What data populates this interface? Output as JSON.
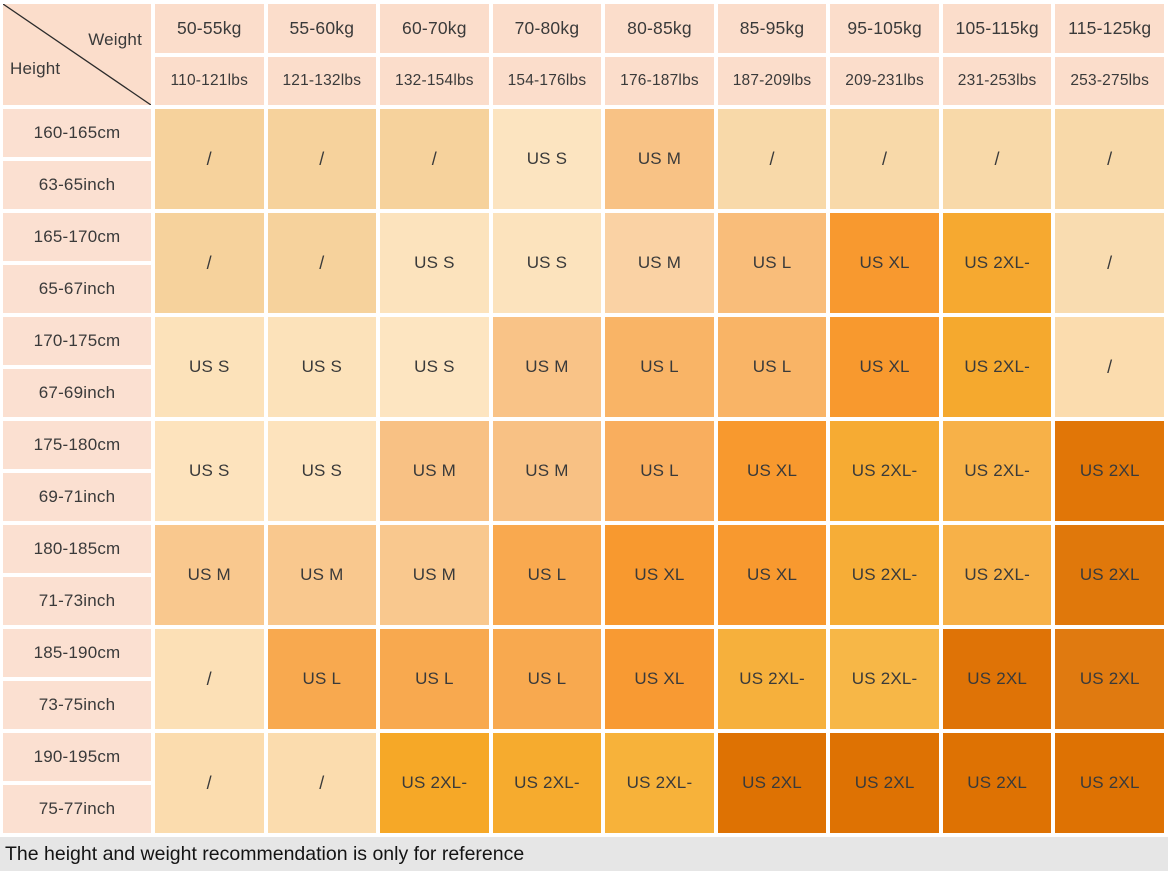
{
  "corner": {
    "weight_label": "Weight",
    "height_label": "Height"
  },
  "weight_headers_kg": [
    "50-55kg",
    "55-60kg",
    "60-70kg",
    "70-80kg",
    "80-85kg",
    "85-95kg",
    "95-105kg",
    "105-115kg",
    "115-125kg"
  ],
  "weight_headers_lbs": [
    "110-121lbs",
    "121-132lbs",
    "132-154lbs",
    "154-176lbs",
    "176-187lbs",
    "187-209lbs",
    "209-231lbs",
    "231-253lbs",
    "253-275lbs"
  ],
  "colors": {
    "header_bg": "#fbddcb",
    "height_col_bg": "#fbe0d1",
    "footer_bg": "#e6e6e6",
    "grid_gap": "#ffffff",
    "text": "#3a3a3a"
  },
  "rows": [
    {
      "cm": "160-165cm",
      "inch": "63-65inch",
      "cells": [
        {
          "label": "/",
          "color": "#f6d29c"
        },
        {
          "label": "/",
          "color": "#f6d29c"
        },
        {
          "label": "/",
          "color": "#f6d29c"
        },
        {
          "label": "US S",
          "color": "#fce4c0"
        },
        {
          "label": "US M",
          "color": "#f8c285"
        },
        {
          "label": "/",
          "color": "#f8d9a9"
        },
        {
          "label": "/",
          "color": "#f8d9a9"
        },
        {
          "label": "/",
          "color": "#f8d9a9"
        },
        {
          "label": "/",
          "color": "#f8d9a9"
        }
      ]
    },
    {
      "cm": "165-170cm",
      "inch": "65-67inch",
      "cells": [
        {
          "label": "/",
          "color": "#f6d29c"
        },
        {
          "label": "/",
          "color": "#f6d29c"
        },
        {
          "label": "US S",
          "color": "#fce3bd"
        },
        {
          "label": "US S",
          "color": "#fce3bd"
        },
        {
          "label": "US M",
          "color": "#fad2a4"
        },
        {
          "label": "US L",
          "color": "#f9bd7a"
        },
        {
          "label": "US XL",
          "color": "#f8992f"
        },
        {
          "label": "US 2XL-",
          "color": "#f6a930"
        },
        {
          "label": "/",
          "color": "#f9dcb0"
        }
      ]
    },
    {
      "cm": "170-175cm",
      "inch": "67-69inch",
      "cells": [
        {
          "label": "US S",
          "color": "#fce2ba"
        },
        {
          "label": "US S",
          "color": "#fce2ba"
        },
        {
          "label": "US S",
          "color": "#fde5c1"
        },
        {
          "label": "US M",
          "color": "#f9c387"
        },
        {
          "label": "US L",
          "color": "#f9b466"
        },
        {
          "label": "US L",
          "color": "#f9b466"
        },
        {
          "label": "US XL",
          "color": "#f8992e"
        },
        {
          "label": "US 2XL-",
          "color": "#f5a92e"
        },
        {
          "label": "/",
          "color": "#fbdcae"
        }
      ]
    },
    {
      "cm": "175-180cm",
      "inch": "69-71inch",
      "cells": [
        {
          "label": "US S",
          "color": "#fde3bd"
        },
        {
          "label": "US S",
          "color": "#fde3bd"
        },
        {
          "label": "US M",
          "color": "#f8c184"
        },
        {
          "label": "US M",
          "color": "#f8c184"
        },
        {
          "label": "US L",
          "color": "#f9ae5e"
        },
        {
          "label": "US XL",
          "color": "#f8992e"
        },
        {
          "label": "US 2XL-",
          "color": "#f6ab33"
        },
        {
          "label": "US 2XL-",
          "color": "#f7b148"
        },
        {
          "label": "US 2XL",
          "color": "#e17607"
        }
      ]
    },
    {
      "cm": "180-185cm",
      "inch": "71-73inch",
      "cells": [
        {
          "label": "US M",
          "color": "#f9c88e"
        },
        {
          "label": "US M",
          "color": "#f9c88e"
        },
        {
          "label": "US M",
          "color": "#f9c88e"
        },
        {
          "label": "US L",
          "color": "#f9a94f"
        },
        {
          "label": "US XL",
          "color": "#f8992f"
        },
        {
          "label": "US XL",
          "color": "#f8992f"
        },
        {
          "label": "US 2XL-",
          "color": "#f6ad37"
        },
        {
          "label": "US 2XL-",
          "color": "#f7b148"
        },
        {
          "label": "US 2XL",
          "color": "#e0780b"
        }
      ]
    },
    {
      "cm": "185-190cm",
      "inch": "73-75inch",
      "cells": [
        {
          "label": "/",
          "color": "#fce0b6"
        },
        {
          "label": "US L",
          "color": "#f8a94f"
        },
        {
          "label": "US L",
          "color": "#f8a94f"
        },
        {
          "label": "US L",
          "color": "#f8a94f"
        },
        {
          "label": "US XL",
          "color": "#f89a33"
        },
        {
          "label": "US 2XL-",
          "color": "#f6b03c"
        },
        {
          "label": "US 2XL-",
          "color": "#f7b747"
        },
        {
          "label": "US 2XL",
          "color": "#df7306"
        },
        {
          "label": "US 2XL",
          "color": "#e07a10"
        }
      ]
    },
    {
      "cm": "190-195cm",
      "inch": "75-77inch",
      "cells": [
        {
          "label": "/",
          "color": "#fbdcae"
        },
        {
          "label": "/",
          "color": "#fbdcae"
        },
        {
          "label": "US 2XL-",
          "color": "#f6a827"
        },
        {
          "label": "US 2XL-",
          "color": "#f6ab2e"
        },
        {
          "label": "US 2XL-",
          "color": "#f7b23a"
        },
        {
          "label": "US 2XL",
          "color": "#de7203"
        },
        {
          "label": "US 2XL",
          "color": "#de7203"
        },
        {
          "label": "US 2XL",
          "color": "#de7203"
        },
        {
          "label": "US 2XL",
          "color": "#de7203"
        }
      ]
    }
  ],
  "footer": {
    "note": "The height and weight recommendation is only for reference"
  }
}
